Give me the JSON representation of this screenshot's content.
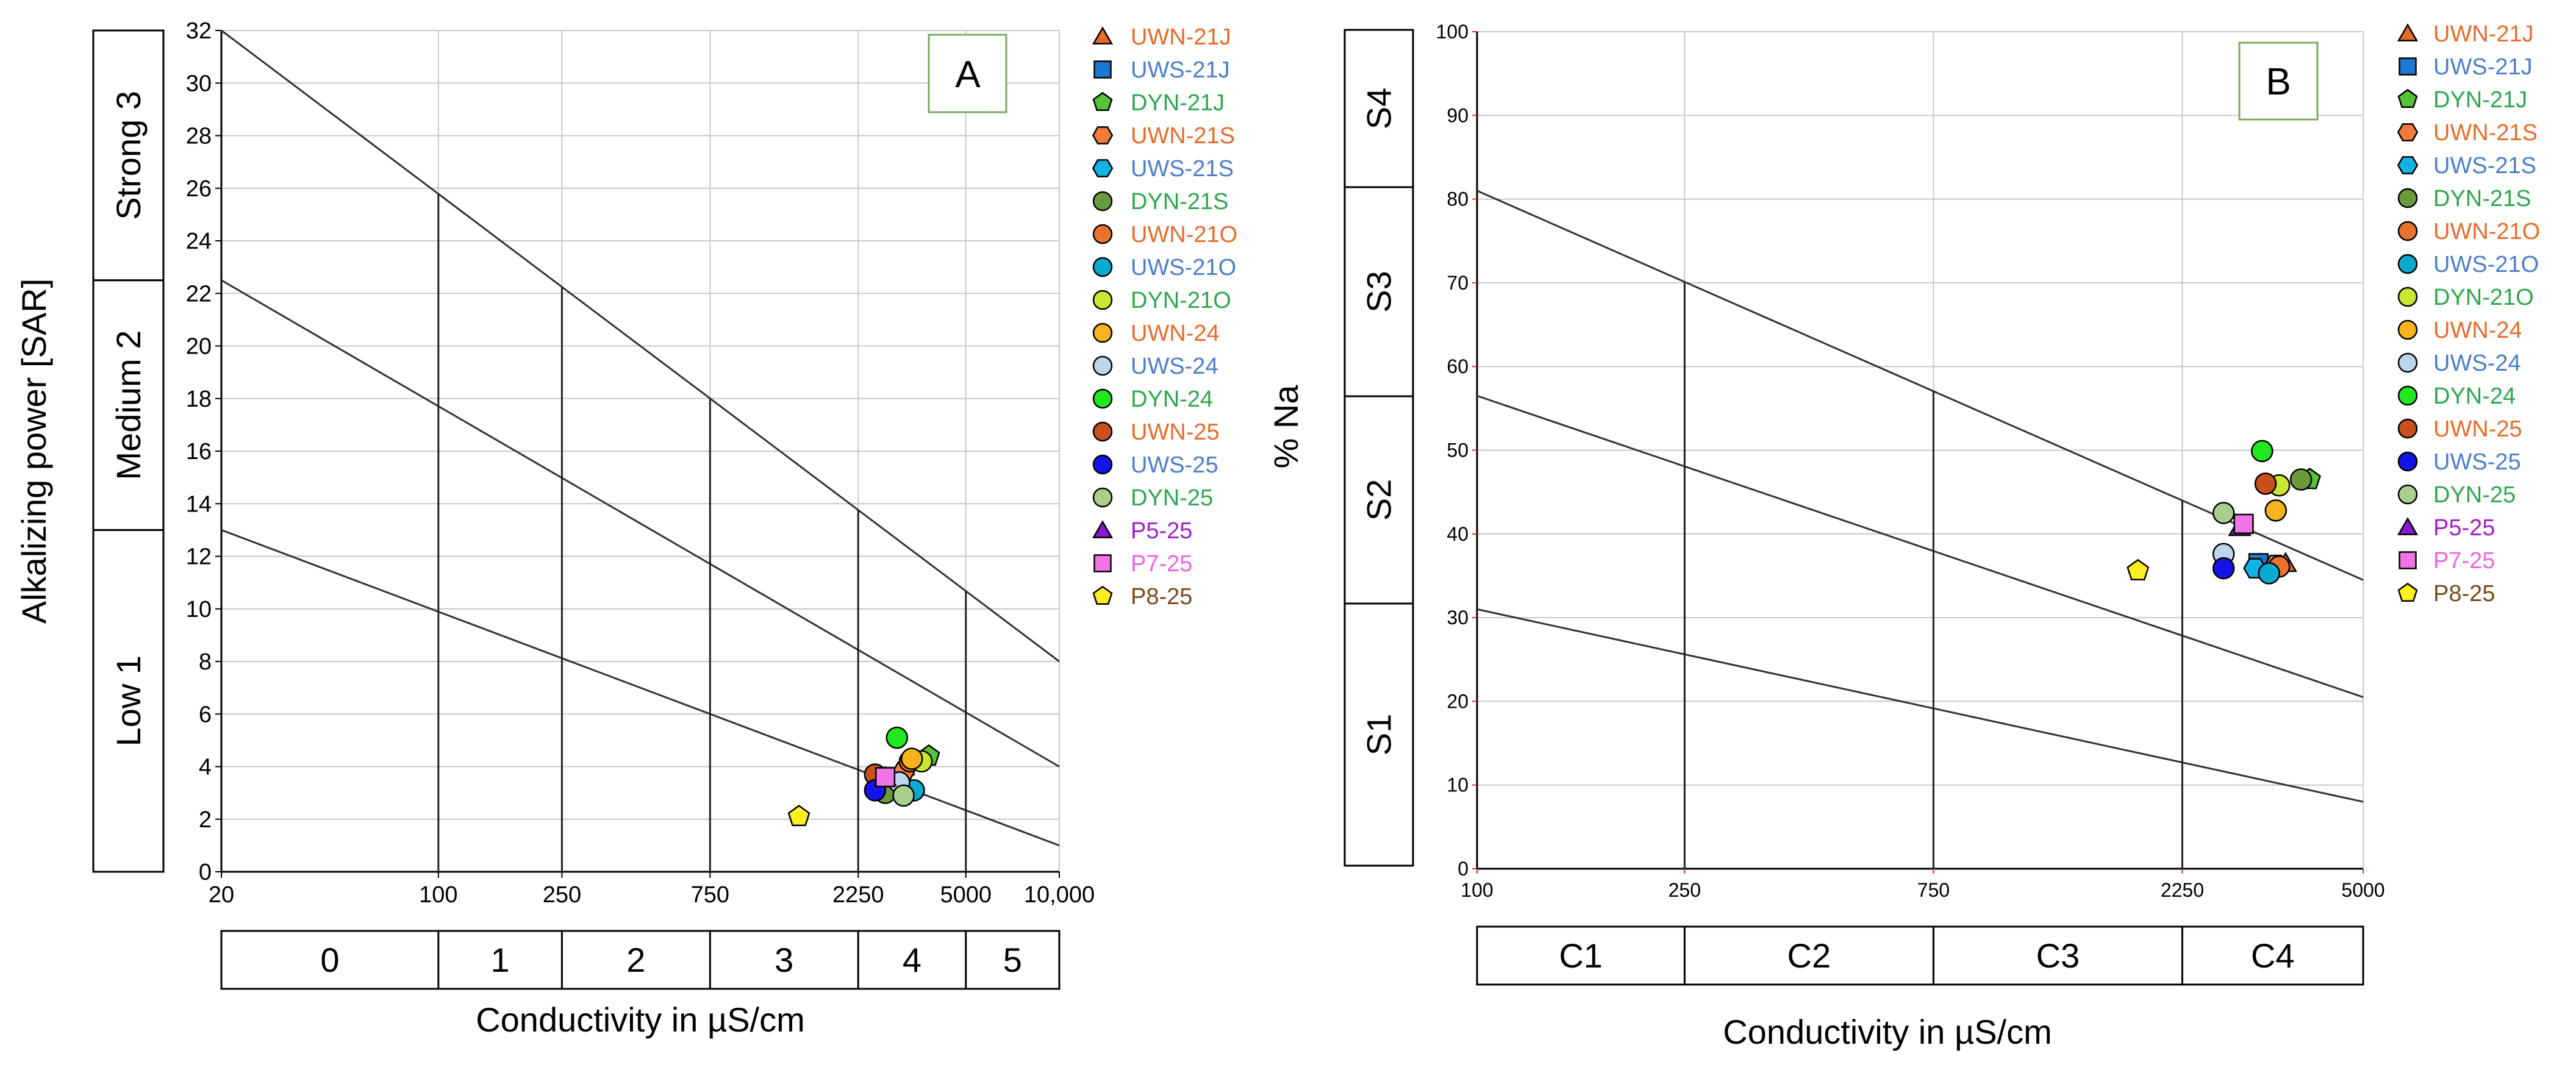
{
  "chart_data": [
    {
      "panel": "A",
      "type": "scatter",
      "xlabel": "Conductivity in µS/cm",
      "ylabel": "Alkalizing power [SAR]",
      "x_ticks": [
        "20",
        "100",
        "250",
        "750",
        "2250",
        "5000",
        "10,000"
      ],
      "y_ticks": [
        "0",
        "2",
        "4",
        "6",
        "8",
        "10",
        "12",
        "14",
        "16",
        "18",
        "20",
        "22",
        "24",
        "26",
        "28",
        "30",
        "32"
      ],
      "ylim": [
        0,
        32
      ],
      "sodium_classes": [
        "Low 1",
        "Medium 2",
        "Strong 3"
      ],
      "salinity_classes": [
        "0",
        "1",
        "2",
        "3",
        "4",
        "5"
      ],
      "points": [
        {
          "name": "UWN-21J",
          "x": 3150,
          "y": 4.0
        },
        {
          "name": "UWS-21J",
          "x": 3250,
          "y": 3.1
        },
        {
          "name": "DYN-21J",
          "x": 3800,
          "y": 4.4
        },
        {
          "name": "UWN-21S",
          "x": 3150,
          "y": 3.8
        },
        {
          "name": "UWS-21S",
          "x": 2900,
          "y": 3.3
        },
        {
          "name": "DYN-21S",
          "x": 2750,
          "y": 3.0
        },
        {
          "name": "UWN-21O",
          "x": 3300,
          "y": 4.2
        },
        {
          "name": "UWS-21O",
          "x": 3400,
          "y": 3.1
        },
        {
          "name": "DYN-21O",
          "x": 3600,
          "y": 4.2
        },
        {
          "name": "UWN-24",
          "x": 3350,
          "y": 4.3
        },
        {
          "name": "UWS-24",
          "x": 3050,
          "y": 3.4
        },
        {
          "name": "DYN-24",
          "x": 3000,
          "y": 5.1
        },
        {
          "name": "UWN-25",
          "x": 2550,
          "y": 3.7
        },
        {
          "name": "UWS-25",
          "x": 2550,
          "y": 3.1
        },
        {
          "name": "DYN-25",
          "x": 3150,
          "y": 2.9
        },
        {
          "name": "P5-25",
          "x": 2750,
          "y": 3.6
        },
        {
          "name": "P7-25",
          "x": 2750,
          "y": 3.6
        },
        {
          "name": "P8-25",
          "x": 1450,
          "y": 2.1
        }
      ]
    },
    {
      "panel": "B",
      "type": "scatter",
      "xlabel": "Conductivity  in µS/cm",
      "ylabel": "% Na",
      "x_ticks": [
        "100",
        "250",
        "750",
        "2250",
        "5000"
      ],
      "y_ticks": [
        "0",
        "10",
        "20",
        "30",
        "40",
        "50",
        "60",
        "70",
        "80",
        "90",
        "100"
      ],
      "ylim": [
        0,
        100
      ],
      "sodium_classes": [
        "S1",
        "S2",
        "S3",
        "S4"
      ],
      "salinity_classes": [
        "C1",
        "C2",
        "C3",
        "C4"
      ],
      "points": [
        {
          "name": "UWN-21J",
          "x": 3550,
          "y": 36.5
        },
        {
          "name": "UWS-21J",
          "x": 3150,
          "y": 36.5
        },
        {
          "name": "DYN-21J",
          "x": 3950,
          "y": 46.5
        },
        {
          "name": "UWN-21S",
          "x": 3400,
          "y": 36.3
        },
        {
          "name": "UWS-21S",
          "x": 3100,
          "y": 35.9
        },
        {
          "name": "DYN-21S",
          "x": 3800,
          "y": 46.5
        },
        {
          "name": "UWN-21O",
          "x": 3450,
          "y": 36.1
        },
        {
          "name": "UWS-21O",
          "x": 3300,
          "y": 35.3
        },
        {
          "name": "DYN-21O",
          "x": 3450,
          "y": 45.8
        },
        {
          "name": "UWN-24",
          "x": 3400,
          "y": 42.8
        },
        {
          "name": "UWS-24",
          "x": 2700,
          "y": 37.6
        },
        {
          "name": "DYN-24",
          "x": 3200,
          "y": 49.9
        },
        {
          "name": "UWN-25",
          "x": 3250,
          "y": 46.0
        },
        {
          "name": "UWS-25",
          "x": 2700,
          "y": 35.9
        },
        {
          "name": "DYN-25",
          "x": 2700,
          "y": 42.5
        },
        {
          "name": "P5-25",
          "x": 2900,
          "y": 40.8
        },
        {
          "name": "P7-25",
          "x": 2950,
          "y": 41.2
        },
        {
          "name": "P8-25",
          "x": 1850,
          "y": 35.6
        }
      ]
    }
  ],
  "legend": [
    {
      "label": "UWN-21J",
      "shape": "triangle",
      "fill": "#E46C2A",
      "text": "#E46C2A"
    },
    {
      "label": "UWS-21J",
      "shape": "square",
      "fill": "#1E78D2",
      "text": "#4A7EC8"
    },
    {
      "label": "DYN-21J",
      "shape": "pentagon",
      "fill": "#55C23A",
      "text": "#2EA64E"
    },
    {
      "label": "UWN-21S",
      "shape": "hexagon",
      "fill": "#F07B3A",
      "text": "#E46C2A"
    },
    {
      "label": "UWS-21S",
      "shape": "hexagon",
      "fill": "#12B4E8",
      "text": "#4A7EC8"
    },
    {
      "label": "DYN-21S",
      "shape": "circle",
      "fill": "#6B9A3C",
      "text": "#2EA64E"
    },
    {
      "label": "UWN-21O",
      "shape": "circle",
      "fill": "#E8732C",
      "text": "#E46C2A"
    },
    {
      "label": "UWS-21O",
      "shape": "circle",
      "fill": "#0AAAD0",
      "text": "#4A7EC8"
    },
    {
      "label": "DYN-21O",
      "shape": "circle",
      "fill": "#C8E830",
      "text": "#2EA64E"
    },
    {
      "label": "UWN-24",
      "shape": "circle",
      "fill": "#F7B21C",
      "text": "#E46C2A"
    },
    {
      "label": "UWS-24",
      "shape": "circle",
      "fill": "#BCD6EE",
      "text": "#4A7EC8"
    },
    {
      "label": "DYN-24",
      "shape": "circle",
      "fill": "#22E822",
      "text": "#2EA64E"
    },
    {
      "label": "UWN-25",
      "shape": "circle",
      "fill": "#C8501C",
      "text": "#E46C2A"
    },
    {
      "label": "UWS-25",
      "shape": "circle",
      "fill": "#1414E8",
      "text": "#4A7EC8"
    },
    {
      "label": "DYN-25",
      "shape": "circle",
      "fill": "#A8D08C",
      "text": "#2EA64E"
    },
    {
      "label": "P5-25",
      "shape": "triangle",
      "fill": "#8A1ACE",
      "text": "#A020C8"
    },
    {
      "label": "P7-25",
      "shape": "square",
      "fill": "#F074E4",
      "text": "#F064E0"
    },
    {
      "label": "P8-25",
      "shape": "pentagon",
      "fill": "#FFEE22",
      "text": "#7A4A1A"
    }
  ],
  "panel_labels": {
    "a": "A",
    "b": "B"
  }
}
